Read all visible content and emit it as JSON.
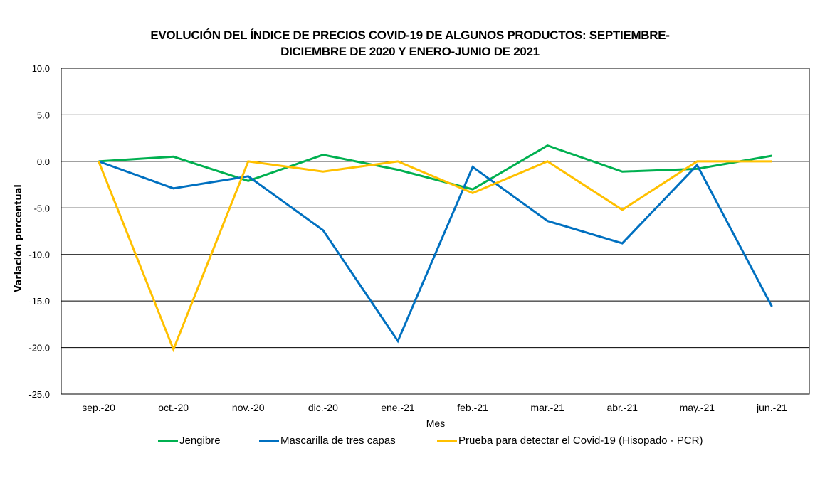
{
  "chart_data": {
    "type": "line",
    "title_line1": "EVOLUCIÓN DEL ÍNDICE DE PRECIOS COVID-19 DE ALGUNOS PRODUCTOS: SEPTIEMBRE-",
    "title_line2": "DICIEMBRE DE 2020 Y ENERO-JUNIO DE 2021",
    "xlabel": "Mes",
    "ylabel": "Variación porcentual",
    "ylim": [
      -25,
      10
    ],
    "yticks": [
      10,
      5,
      0,
      -5,
      -10,
      -15,
      -20,
      -25
    ],
    "ytick_labels": [
      "10.0",
      "5.0",
      "0.0",
      "-5.0",
      "-10.0",
      "-15.0",
      "-20.0",
      "-25.0"
    ],
    "grid": true,
    "legend_position": "bottom",
    "categories": [
      "sep.-20",
      "oct.-20",
      "nov.-20",
      "dic.-20",
      "ene.-21",
      "feb.-21",
      "mar.-21",
      "abr.-21",
      "may.-21",
      "jun.-21"
    ],
    "series": [
      {
        "name": "Jengibre",
        "color": "#00B050",
        "values": [
          0.0,
          0.5,
          -2.1,
          0.7,
          -0.9,
          -3.0,
          1.7,
          -1.1,
          -0.8,
          0.6
        ]
      },
      {
        "name": "Mascarilla de tres capas",
        "color": "#0070C0",
        "values": [
          0.0,
          -2.9,
          -1.6,
          -7.4,
          -19.3,
          -0.6,
          -6.4,
          -8.8,
          -0.4,
          -15.6
        ]
      },
      {
        "name": "Prueba para detectar el Covid-19 (Hisopado - PCR)",
        "color": "#FFC000",
        "values": [
          0.0,
          -20.2,
          0.0,
          -1.1,
          0.0,
          -3.4,
          0.0,
          -5.2,
          0.0,
          0.0
        ]
      }
    ]
  }
}
